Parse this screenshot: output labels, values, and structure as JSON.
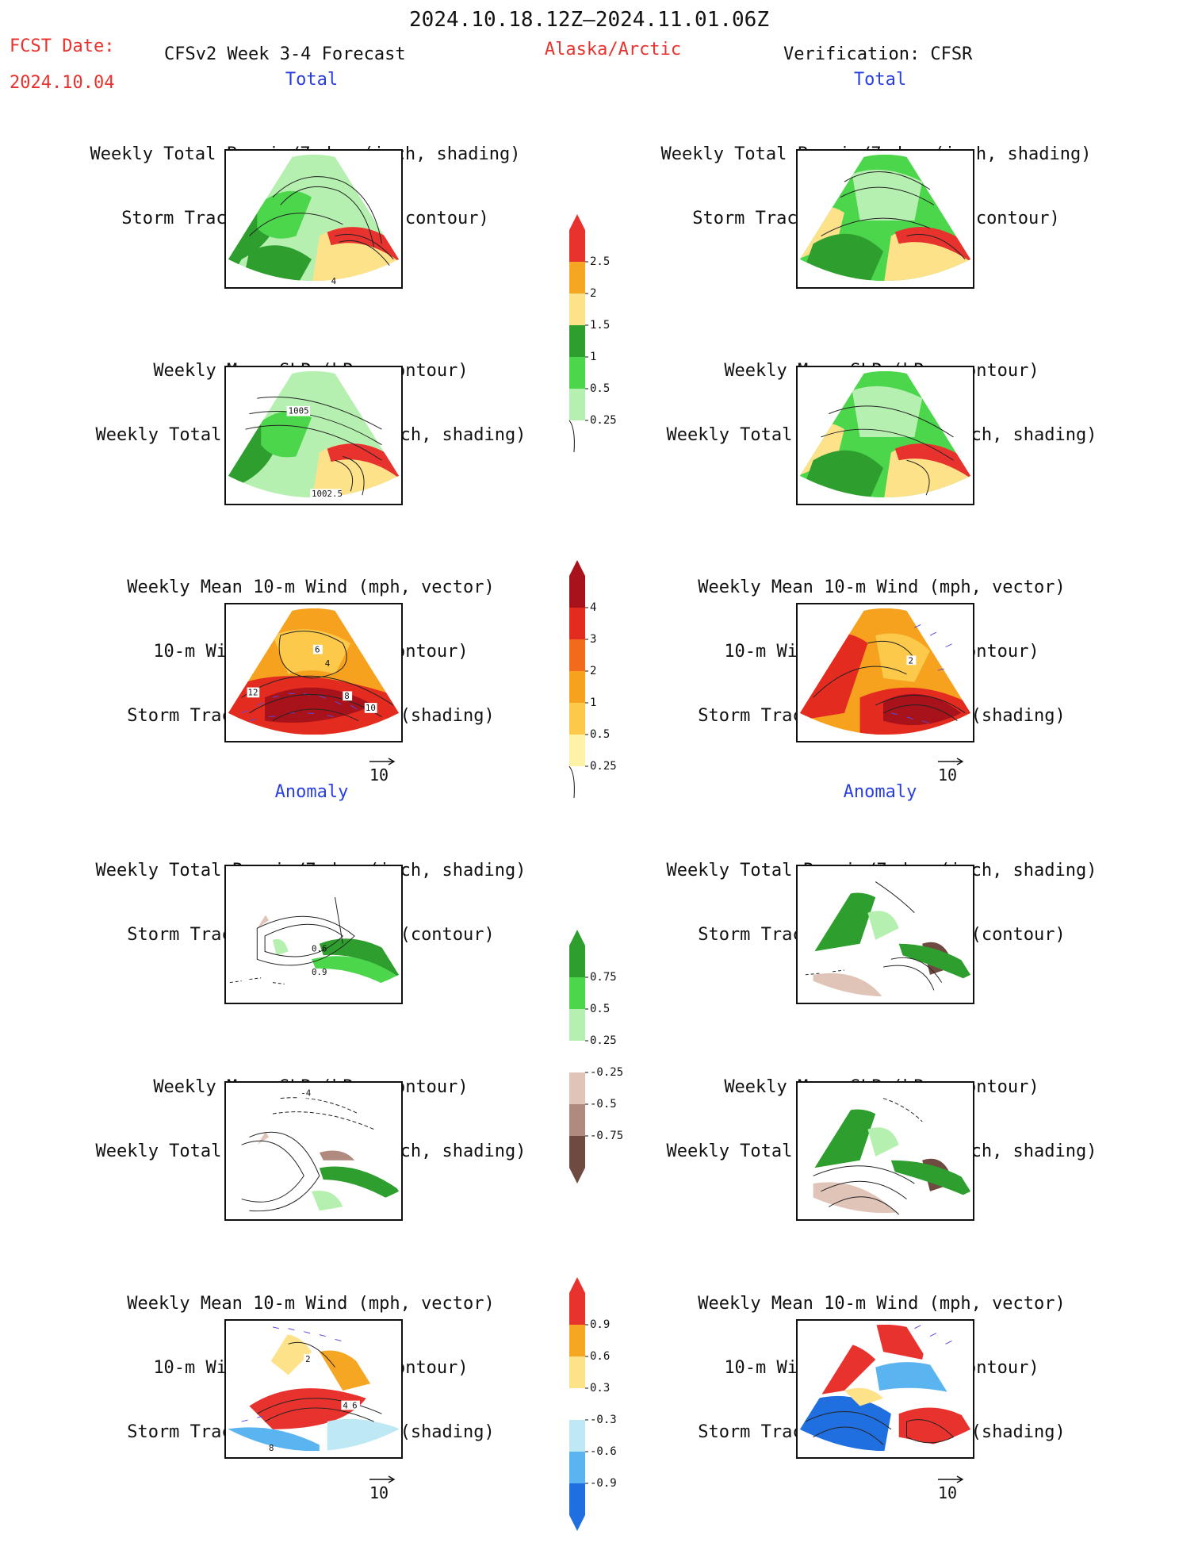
{
  "header": {
    "period": "2024.10.18.12Z–2024.11.01.06Z",
    "fcst_date_label": "FCST Date:",
    "fcst_date_value": "2024.10.04",
    "forecast_label": "CFSv2 Week 3-4 Forecast",
    "region": "Alaska/Arctic",
    "verification_label": "Verification: CFSR"
  },
  "sections": {
    "total": "Total",
    "anomaly": "Anomaly"
  },
  "titles": {
    "precip_storm": [
      "Weekly Total Precip/7-day (inch, shading)",
      "Storm Track Density/7-day (contour)"
    ],
    "slp_precip": [
      "Weekly Mean SLP (hPa, contour)",
      "Weekly Total Precip/7-day (inch, shading)"
    ],
    "wind_storm": [
      "Weekly Mean 10-m Wind (mph, vector)",
      "10-m Wind Speed (mph, contour)",
      "Storm Track Density/7-day (shading)"
    ]
  },
  "map_labels": {
    "fc_total_precip": [
      "4"
    ],
    "fc_total_slp": [
      "1005",
      "1002.5"
    ],
    "fc_total_wind": [
      "6",
      "4",
      "12",
      "8",
      "10"
    ],
    "ver_total_wind": [
      "2"
    ],
    "fc_anom_precip": [
      "0.6",
      "0.9"
    ],
    "fc_anom_slp": [
      "-4"
    ],
    "fc_anom_wind": [
      "2",
      "4",
      "6",
      "8"
    ]
  },
  "vector_reference": "10",
  "colorbars": {
    "total_precip": {
      "labels": [
        "2.5",
        "2",
        "1.5",
        "1",
        "0.5",
        "0.25"
      ],
      "colors": [
        "#e8322e",
        "#f5a623",
        "#fde28a",
        "#2e9e2e",
        "#4cd64c",
        "#b6f0b0"
      ]
    },
    "total_storm": {
      "labels": [
        "4",
        "3",
        "2",
        "1",
        "0.5",
        "0.25"
      ],
      "colors": [
        "#a8121a",
        "#e32b20",
        "#f26a1b",
        "#f7a21e",
        "#fcc94a",
        "#fdf2a8"
      ]
    },
    "anom_precip": {
      "labels": [
        "0.75",
        "0.5",
        "0.25",
        "-0.25",
        "-0.5",
        "-0.75"
      ],
      "colors": [
        "#2e9e2e",
        "#4cd64c",
        "#b6f0b0",
        "#ffffff",
        "#e0c4b8",
        "#b08a7e",
        "#6e4a40"
      ]
    },
    "anom_storm": {
      "labels": [
        "0.9",
        "0.6",
        "0.3",
        "-0.3",
        "-0.6",
        "-0.9"
      ],
      "colors": [
        "#e8322e",
        "#f5a623",
        "#fde28a",
        "#ffffff",
        "#bfe8f5",
        "#5ab4f0",
        "#1f6fe0"
      ]
    }
  }
}
